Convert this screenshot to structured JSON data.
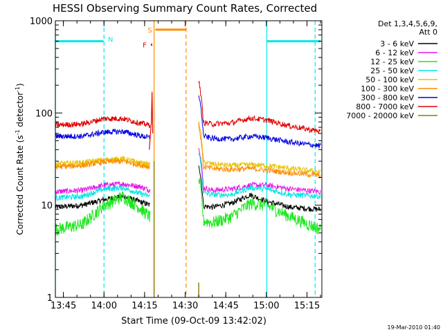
{
  "chart_data": {
    "type": "line",
    "title": "HESSI Observing Summary Count Rates, Corrected",
    "xlabel": "Start Time (09-Oct-09 13:42:02)",
    "ylabel": "Corrected Count Rate (s",
    "ylabel_sup": "-1",
    "ylabel_tail": " detector",
    "ylabel_close": ")",
    "yscale": "log",
    "ylim": [
      1,
      1000
    ],
    "xlim": [
      "13:42:02",
      "15:20:30"
    ],
    "x_ticks": [
      "13:45",
      "14:00",
      "14:15",
      "14:30",
      "14:45",
      "15:00",
      "15:15"
    ],
    "y_ticks": [
      "1",
      "10",
      "100",
      "1000"
    ],
    "legend_title": [
      "Det 1,3,4,5,6,9,",
      "Att 0"
    ],
    "legend_placement": "right",
    "footer": "19-Mar-2010 01:40",
    "data_gaps": [
      [
        "14:18:00",
        "14:34:30"
      ]
    ],
    "series": [
      {
        "name": "3 - 6 keV",
        "color": "#000000",
        "pre": [
          9.5,
          10,
          11.5,
          12.5,
          11,
          10
        ],
        "post": [
          10,
          9.5,
          10.5,
          13,
          11,
          9.5,
          9
        ]
      },
      {
        "name": "6 - 12 keV",
        "color": "#e815e8",
        "pre": [
          14,
          14.5,
          16.5,
          17,
          16,
          14.5
        ],
        "post": [
          16,
          14.5,
          15,
          16.5,
          16.5,
          15,
          14
        ]
      },
      {
        "name": "12 - 25 keV",
        "color": "#1ee61e",
        "pre": [
          5.5,
          6.2,
          10,
          12.5,
          9.5,
          7.5
        ],
        "post": [
          7,
          6.5,
          7.5,
          10.5,
          10,
          7.5,
          5.5
        ]
      },
      {
        "name": "25 - 50 keV",
        "color": "#00e5e5",
        "pre": [
          12,
          12.5,
          15,
          15.5,
          13.5,
          12.5
        ],
        "post": [
          14,
          13,
          13,
          15.5,
          15,
          13,
          12.5
        ]
      },
      {
        "name": "50 - 100 keV",
        "color": "#e5c300",
        "pre": [
          28,
          29,
          31,
          32,
          29,
          27.5
        ],
        "post": [
          30,
          28,
          27,
          27.5,
          27,
          25,
          23
        ]
      },
      {
        "name": "100 - 300 keV",
        "color": "#ff8c00",
        "pre": [
          26,
          27,
          29.5,
          30,
          27.5,
          26
        ],
        "post": [
          26.5,
          25,
          24.5,
          25,
          24,
          22.5,
          21
        ]
      },
      {
        "name": "300 - 800 keV",
        "color": "#0000e0",
        "pre": [
          56,
          56,
          62,
          63,
          57,
          54
        ],
        "post": [
          58,
          53,
          52,
          56,
          54,
          48,
          44
        ]
      },
      {
        "name": "800 - 7000 keV",
        "color": "#e00000",
        "pre": [
          74,
          76,
          87,
          87,
          78,
          74
        ],
        "post": [
          80,
          76,
          78,
          88,
          84,
          72,
          63
        ]
      },
      {
        "name": "7000 - 20000 keV",
        "color": "#8a7a00",
        "pre": [],
        "post": []
      }
    ],
    "pre_x": [
      "13:42",
      "13:52",
      "14:00",
      "14:07",
      "14:13",
      "14:17"
    ],
    "post_x": [
      "14:35",
      "14:40",
      "14:47",
      "14:54",
      "15:00",
      "15:09",
      "15:20"
    ],
    "flags": [
      {
        "label": "N",
        "color": "#00e5e5",
        "level": 600,
        "spans": [
          [
            "13:42:02",
            "13:59:50"
          ],
          [
            "15:00:10",
            "15:20:00"
          ]
        ]
      },
      {
        "label": "S",
        "color": "#ff8c00",
        "level": 800,
        "spans": [
          [
            "14:19:00",
            "14:30:20"
          ]
        ]
      },
      {
        "label": "F",
        "color": "#e00000",
        "level": 550,
        "spans": [
          [
            "14:17:20",
            "14:17:50"
          ]
        ]
      }
    ],
    "vlines": [
      {
        "time": "13:42:02",
        "color": "#00e5e5",
        "style": "solid"
      },
      {
        "time": "14:00:00",
        "color": "#00e5e5",
        "style": "dashed"
      },
      {
        "time": "14:18:30",
        "color": "#ff8c00",
        "style": "solid"
      },
      {
        "time": "14:30:20",
        "color": "#ff8c00",
        "style": "dashed"
      },
      {
        "time": "15:00:10",
        "color": "#00e5e5",
        "style": "solid"
      },
      {
        "time": "15:18:00",
        "color": "#00e5e5",
        "style": "dashed"
      }
    ]
  }
}
